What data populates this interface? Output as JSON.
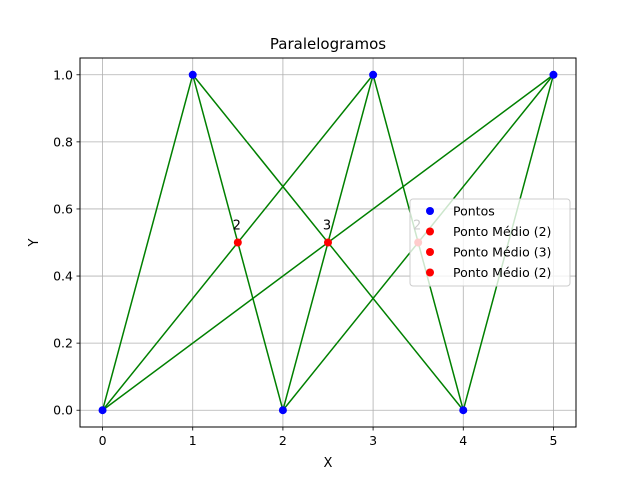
{
  "chart_data": {
    "type": "scatter",
    "title": "Paralelogramos",
    "xlabel": "X",
    "ylabel": "Y",
    "xlim": [
      -0.25,
      5.25
    ],
    "ylim": [
      -0.05,
      1.05
    ],
    "x_ticks": [
      0,
      1,
      2,
      3,
      4,
      5
    ],
    "x_tick_labels": [
      "0",
      "1",
      "2",
      "3",
      "4",
      "5"
    ],
    "y_ticks": [
      0.0,
      0.2,
      0.4,
      0.6,
      0.8,
      1.0
    ],
    "y_tick_labels": [
      "0.0",
      "0.2",
      "0.4",
      "0.6",
      "0.8",
      "1.0"
    ],
    "grid": true,
    "legend_position": "center-right",
    "line_color": "#008000",
    "segments": [
      [
        [
          0,
          0
        ],
        [
          1,
          1
        ]
      ],
      [
        [
          1,
          1
        ],
        [
          2,
          0
        ]
      ],
      [
        [
          2,
          0
        ],
        [
          3,
          1
        ]
      ],
      [
        [
          3,
          1
        ],
        [
          4,
          0
        ]
      ],
      [
        [
          4,
          0
        ],
        [
          5,
          1
        ]
      ],
      [
        [
          0,
          0
        ],
        [
          3,
          1
        ]
      ],
      [
        [
          0,
          0
        ],
        [
          5,
          1
        ]
      ],
      [
        [
          1,
          1
        ],
        [
          4,
          0
        ]
      ],
      [
        [
          2,
          0
        ],
        [
          5,
          1
        ]
      ]
    ],
    "series": [
      {
        "name": "Pontos",
        "color": "#0000ff",
        "points": [
          [
            0,
            0
          ],
          [
            1,
            1
          ],
          [
            2,
            0
          ],
          [
            3,
            1
          ],
          [
            4,
            0
          ],
          [
            5,
            1
          ]
        ]
      },
      {
        "name": "Ponto Médio (2)",
        "color": "#ff0000",
        "points": [
          [
            1.5,
            0.5
          ]
        ],
        "labels": [
          "2"
        ]
      },
      {
        "name": "Ponto Médio (3)",
        "color": "#ff0000",
        "points": [
          [
            2.5,
            0.5
          ]
        ],
        "labels": [
          "3"
        ]
      },
      {
        "name": "Ponto Médio (2)",
        "color": "#ff0000",
        "points": [
          [
            3.5,
            0.5
          ]
        ],
        "labels": [
          "2"
        ]
      }
    ]
  }
}
